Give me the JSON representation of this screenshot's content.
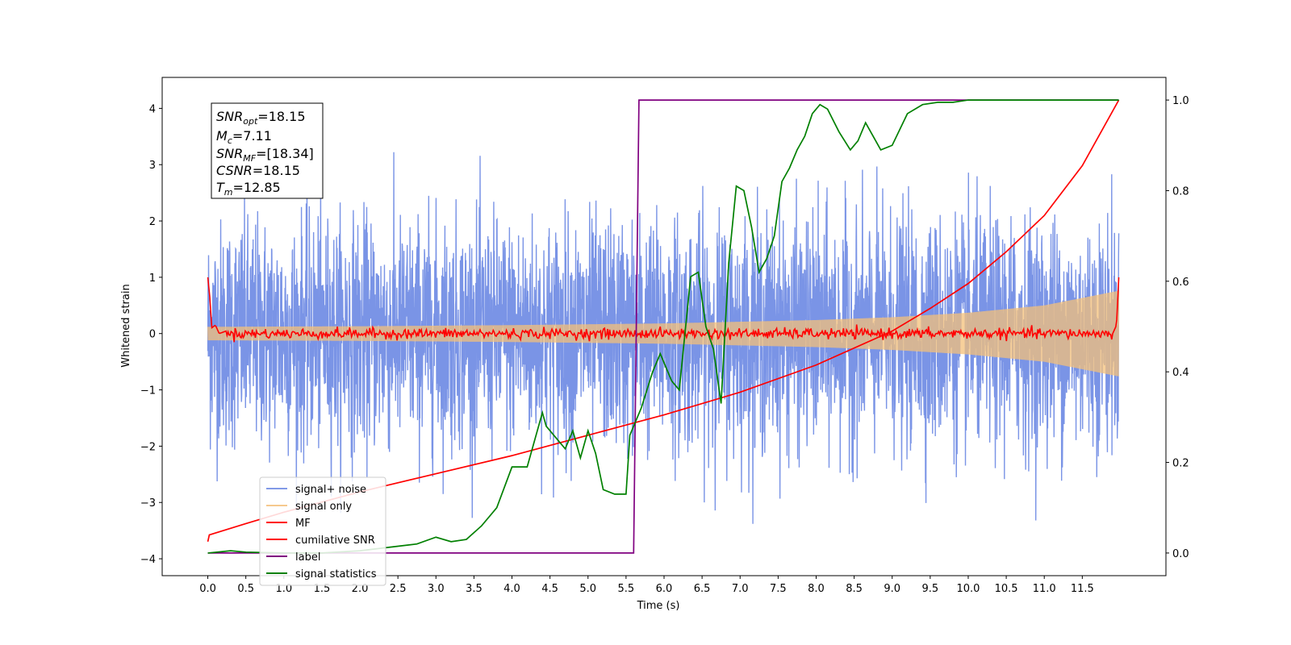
{
  "chart_data": {
    "type": "line",
    "title": "",
    "xlabel": "Time (s)",
    "ylabel": "Whitened strain",
    "y2label": "",
    "xlim": [
      -0.6,
      12.6
    ],
    "ylim": [
      -4.3,
      4.55
    ],
    "y2lim": [
      -0.05,
      1.05
    ],
    "x_ticks": [
      0.0,
      0.5,
      1.0,
      1.5,
      2.0,
      2.5,
      3.0,
      3.5,
      4.0,
      4.5,
      5.0,
      5.5,
      6.0,
      6.5,
      7.0,
      7.5,
      8.0,
      8.5,
      9.0,
      9.5,
      10.0,
      10.5,
      11.0,
      11.5
    ],
    "x_tick_labels": [
      "0.0",
      "0.5",
      "1.0",
      "1.5",
      "2.0",
      "2.5",
      "3.0",
      "3.5",
      "4.0",
      "4.5",
      "5.0",
      "5.5",
      "6.0",
      "6.5",
      "7.0",
      "7.5",
      "8.0",
      "8.5",
      "9.0",
      "9.5",
      "10.0",
      "10.5",
      "11.0",
      "11.5"
    ],
    "y_ticks": [
      -4,
      -3,
      -2,
      -1,
      0,
      1,
      2,
      3,
      4
    ],
    "y_tick_labels": [
      "−4",
      "−3",
      "−2",
      "−1",
      "0",
      "1",
      "2",
      "3",
      "4"
    ],
    "y2_ticks": [
      0.0,
      0.2,
      0.4,
      0.6,
      0.8,
      1.0
    ],
    "y2_tick_labels": [
      "0.0",
      "0.2",
      "0.4",
      "0.6",
      "0.8",
      "1.0"
    ],
    "legend_position": "lower-left",
    "grid": false,
    "series": [
      {
        "name": "signal+ noise",
        "axis": "left",
        "color": "#6b88e3",
        "description_type": "noisy",
        "x_range": [
          0.0,
          11.98
        ],
        "envelope": {
          "x": [
            0.0,
            6.0,
            11.98
          ],
          "sigma": [
            1.0,
            1.0,
            1.0
          ],
          "peak": [
            3.1,
            3.4,
            3.3
          ]
        }
      },
      {
        "name": "signal only",
        "axis": "left",
        "color": "#f4c07a",
        "x_range": [
          0.0,
          11.98
        ],
        "amplitude": {
          "x": [
            0.0,
            2.0,
            4.0,
            6.0,
            8.0,
            9.0,
            10.0,
            11.0,
            11.98
          ],
          "a": [
            0.12,
            0.13,
            0.15,
            0.18,
            0.24,
            0.29,
            0.37,
            0.5,
            0.76
          ]
        }
      },
      {
        "name": "MF",
        "axis": "left",
        "color": "#ff0000",
        "x": [
          0.0,
          0.03,
          0.05,
          0.1,
          0.15,
          0.25,
          11.9,
          11.95,
          11.98
        ],
        "y": [
          1.0,
          0.6,
          0.1,
          0.15,
          0.0,
          0.05,
          0.0,
          0.15,
          1.0
        ]
      },
      {
        "name": "cumilative SNR",
        "axis": "right",
        "color": "#ff0000",
        "x": [
          0.0,
          0.02,
          0.5,
          1.0,
          2.0,
          3.0,
          4.0,
          5.0,
          6.0,
          7.0,
          8.0,
          9.0,
          9.5,
          10.0,
          10.5,
          11.0,
          11.5,
          11.98
        ],
        "y": [
          0.025,
          0.04,
          0.065,
          0.09,
          0.135,
          0.175,
          0.215,
          0.26,
          0.305,
          0.355,
          0.415,
          0.49,
          0.54,
          0.595,
          0.665,
          0.745,
          0.855,
          1.0
        ]
      },
      {
        "name": "label",
        "axis": "right",
        "color": "#800080",
        "x": [
          0.0,
          5.6,
          5.67,
          11.98
        ],
        "y": [
          0.0,
          0.0,
          1.0,
          1.0
        ]
      },
      {
        "name": "signal statistics",
        "axis": "right",
        "color": "#008000",
        "x": [
          0.0,
          0.3,
          0.5,
          1.0,
          1.5,
          2.0,
          2.5,
          2.75,
          3.0,
          3.2,
          3.4,
          3.6,
          3.8,
          4.0,
          4.2,
          4.4,
          4.45,
          4.6,
          4.7,
          4.8,
          4.9,
          5.0,
          5.1,
          5.2,
          5.35,
          5.5,
          5.55,
          5.7,
          5.85,
          5.95,
          6.0,
          6.1,
          6.2,
          6.35,
          6.45,
          6.55,
          6.65,
          6.75,
          6.85,
          6.95,
          7.05,
          7.15,
          7.25,
          7.35,
          7.45,
          7.55,
          7.65,
          7.75,
          7.85,
          7.95,
          8.05,
          8.15,
          8.3,
          8.45,
          8.55,
          8.65,
          8.75,
          8.85,
          9.0,
          9.2,
          9.4,
          9.6,
          9.8,
          10.0,
          10.5,
          11.0,
          11.5,
          11.98
        ],
        "y": [
          0.0,
          0.005,
          0.002,
          0.0,
          0.0,
          0.005,
          0.015,
          0.02,
          0.035,
          0.025,
          0.03,
          0.06,
          0.1,
          0.19,
          0.19,
          0.31,
          0.28,
          0.25,
          0.23,
          0.27,
          0.21,
          0.27,
          0.22,
          0.14,
          0.13,
          0.13,
          0.26,
          0.32,
          0.4,
          0.44,
          0.42,
          0.38,
          0.36,
          0.61,
          0.62,
          0.5,
          0.45,
          0.33,
          0.64,
          0.81,
          0.8,
          0.72,
          0.62,
          0.65,
          0.7,
          0.82,
          0.85,
          0.89,
          0.92,
          0.97,
          0.99,
          0.98,
          0.93,
          0.89,
          0.91,
          0.95,
          0.92,
          0.89,
          0.9,
          0.97,
          0.99,
          0.995,
          0.995,
          1.0,
          1.0,
          1.0,
          1.0,
          1.0
        ]
      }
    ],
    "annotation": {
      "snr_opt": {
        "base": "SNR",
        "sub": "opt",
        "value": "=18.15"
      },
      "mc": {
        "base": "M",
        "sub": "c",
        "value": "=7.11"
      },
      "snr_mf": {
        "base": "SNR",
        "sub": "MF",
        "value": "=[18.34]"
      },
      "csnr": {
        "base": "CSNR",
        "sub": "",
        "value": "=18.15"
      },
      "tm": {
        "base": "T",
        "sub": "m",
        "value": "=12.85"
      }
    }
  }
}
